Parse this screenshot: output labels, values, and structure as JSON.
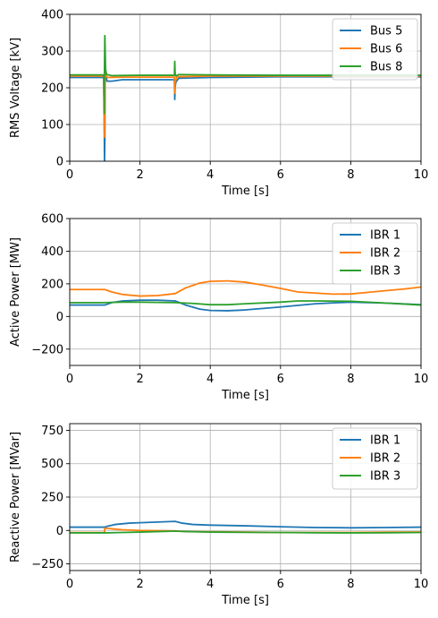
{
  "chart_data": [
    {
      "type": "line",
      "xlabel": "Time [s]",
      "ylabel": "RMS Voltage [kV]",
      "xlim": [
        0,
        10
      ],
      "ylim": [
        0,
        400
      ],
      "xticks": [
        0,
        2,
        4,
        6,
        8,
        10
      ],
      "yticks": [
        0,
        100,
        200,
        300,
        400
      ],
      "grid": true,
      "legend_position": "top-right",
      "series": [
        {
          "name": "Bus 5",
          "color": "#1f77b4",
          "points": [
            [
              0,
              228
            ],
            [
              0.97,
              228
            ],
            [
              0.98,
              150
            ],
            [
              0.99,
              0
            ],
            [
              1.0,
              60
            ],
            [
              1.01,
              250
            ],
            [
              1.03,
              235
            ],
            [
              1.06,
              218
            ],
            [
              1.2,
              218
            ],
            [
              1.5,
              222
            ],
            [
              2.0,
              222
            ],
            [
              2.98,
              222
            ],
            [
              2.99,
              168
            ],
            [
              3.0,
              200
            ],
            [
              3.02,
              215
            ],
            [
              3.1,
              226
            ],
            [
              4.0,
              228
            ],
            [
              6.0,
              230
            ],
            [
              8.0,
              230
            ],
            [
              10,
              230
            ]
          ]
        },
        {
          "name": "Bus 6",
          "color": "#ff7f0e",
          "points": [
            [
              0,
              232
            ],
            [
              0.97,
              232
            ],
            [
              0.98,
              100
            ],
            [
              0.99,
              65
            ],
            [
              1.0,
              140
            ],
            [
              1.01,
              250
            ],
            [
              1.03,
              232
            ],
            [
              1.08,
              228
            ],
            [
              1.5,
              229
            ],
            [
              2.98,
              229
            ],
            [
              2.99,
              185
            ],
            [
              3.0,
              215
            ],
            [
              3.05,
              230
            ],
            [
              4.0,
              232
            ],
            [
              6.0,
              232
            ],
            [
              8.0,
              232
            ],
            [
              10,
              232
            ]
          ]
        },
        {
          "name": "Bus 8",
          "color": "#2ca02c",
          "points": [
            [
              0,
              235
            ],
            [
              0.97,
              235
            ],
            [
              0.98,
              130
            ],
            [
              0.99,
              260
            ],
            [
              1.0,
              342
            ],
            [
              1.01,
              300
            ],
            [
              1.02,
              250
            ],
            [
              1.05,
              236
            ],
            [
              1.2,
              233
            ],
            [
              2.0,
              234
            ],
            [
              2.98,
              234
            ],
            [
              2.99,
              272
            ],
            [
              3.0,
              240
            ],
            [
              3.02,
              232
            ],
            [
              3.1,
              236
            ],
            [
              4.0,
              235
            ],
            [
              6.0,
              234
            ],
            [
              8.0,
              234
            ],
            [
              10,
              234
            ]
          ]
        }
      ]
    },
    {
      "type": "line",
      "xlabel": "Time [s]",
      "ylabel": "Active Power [MW]",
      "xlim": [
        0,
        10
      ],
      "ylim": [
        -300,
        600
      ],
      "xticks": [
        0,
        2,
        4,
        6,
        8,
        10
      ],
      "yticks": [
        -200,
        0,
        200,
        400,
        600
      ],
      "grid": true,
      "legend_position": "top-right",
      "series": [
        {
          "name": "IBR 1",
          "color": "#1f77b4",
          "points": [
            [
              0,
              70
            ],
            [
              1.0,
              70
            ],
            [
              1.2,
              85
            ],
            [
              1.5,
              95
            ],
            [
              2.0,
              100
            ],
            [
              2.5,
              100
            ],
            [
              3.0,
              95
            ],
            [
              3.3,
              70
            ],
            [
              3.7,
              45
            ],
            [
              4.0,
              37
            ],
            [
              4.5,
              35
            ],
            [
              5.0,
              40
            ],
            [
              6.0,
              58
            ],
            [
              7.0,
              78
            ],
            [
              8.0,
              88
            ],
            [
              9.0,
              82
            ],
            [
              10,
              72
            ]
          ]
        },
        {
          "name": "IBR 2",
          "color": "#ff7f0e",
          "points": [
            [
              0,
              165
            ],
            [
              1.0,
              165
            ],
            [
              1.2,
              150
            ],
            [
              1.5,
              135
            ],
            [
              2.0,
              125
            ],
            [
              2.5,
              128
            ],
            [
              3.0,
              140
            ],
            [
              3.3,
              175
            ],
            [
              3.7,
              205
            ],
            [
              4.0,
              215
            ],
            [
              4.5,
              218
            ],
            [
              5.0,
              210
            ],
            [
              5.5,
              192
            ],
            [
              6.0,
              172
            ],
            [
              6.5,
              150
            ],
            [
              7.0,
              143
            ],
            [
              7.5,
              137
            ],
            [
              8.0,
              138
            ],
            [
              8.5,
              148
            ],
            [
              9.0,
              158
            ],
            [
              9.5,
              168
            ],
            [
              10,
              180
            ]
          ]
        },
        {
          "name": "IBR 3",
          "color": "#2ca02c",
          "points": [
            [
              0,
              85
            ],
            [
              1.0,
              85
            ],
            [
              1.5,
              88
            ],
            [
              2.0,
              88
            ],
            [
              3.0,
              85
            ],
            [
              3.5,
              80
            ],
            [
              4.0,
              72
            ],
            [
              4.5,
              72
            ],
            [
              5.0,
              78
            ],
            [
              6.0,
              88
            ],
            [
              6.5,
              95
            ],
            [
              7.0,
              95
            ],
            [
              8.0,
              93
            ],
            [
              9.0,
              82
            ],
            [
              10,
              70
            ]
          ]
        }
      ]
    },
    {
      "type": "line",
      "xlabel": "Time [s]",
      "ylabel": "Reactive Power [MVar]",
      "xlim": [
        0,
        10
      ],
      "ylim": [
        -300,
        800
      ],
      "xticks": [
        0,
        2,
        4,
        6,
        8,
        10
      ],
      "yticks": [
        -250,
        0,
        250,
        500,
        750
      ],
      "grid": true,
      "legend_position": "top-right",
      "series": [
        {
          "name": "IBR 1",
          "color": "#1f77b4",
          "points": [
            [
              0,
              25
            ],
            [
              1.0,
              25
            ],
            [
              1.05,
              30
            ],
            [
              1.3,
              45
            ],
            [
              1.7,
              55
            ],
            [
              2.0,
              58
            ],
            [
              2.5,
              63
            ],
            [
              3.0,
              68
            ],
            [
              3.2,
              55
            ],
            [
              3.5,
              45
            ],
            [
              4.0,
              40
            ],
            [
              5.0,
              35
            ],
            [
              6.0,
              28
            ],
            [
              7.0,
              22
            ],
            [
              8.0,
              20
            ],
            [
              9.0,
              22
            ],
            [
              10,
              25
            ]
          ]
        },
        {
          "name": "IBR 2",
          "color": "#ff7f0e",
          "points": [
            [
              0,
              -15
            ],
            [
              0.99,
              -15
            ],
            [
              1.0,
              18
            ],
            [
              1.1,
              15
            ],
            [
              1.5,
              5
            ],
            [
              2.0,
              0
            ],
            [
              3.0,
              -3
            ],
            [
              3.3,
              -8
            ],
            [
              4.0,
              -10
            ],
            [
              5.0,
              -12
            ],
            [
              6.0,
              -15
            ],
            [
              7.0,
              -15
            ],
            [
              8.0,
              -15
            ],
            [
              9.0,
              -13
            ],
            [
              10,
              -12
            ]
          ]
        },
        {
          "name": "IBR 3",
          "color": "#2ca02c",
          "points": [
            [
              0,
              -18
            ],
            [
              1.0,
              -18
            ],
            [
              1.5,
              -15
            ],
            [
              2.0,
              -12
            ],
            [
              3.0,
              -5
            ],
            [
              3.3,
              -8
            ],
            [
              4.0,
              -12
            ],
            [
              5.0,
              -14
            ],
            [
              6.0,
              -15
            ],
            [
              7.0,
              -17
            ],
            [
              8.0,
              -18
            ],
            [
              9.0,
              -17
            ],
            [
              10,
              -15
            ]
          ]
        }
      ]
    }
  ]
}
